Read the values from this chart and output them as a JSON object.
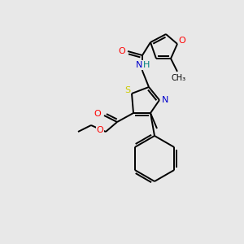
{
  "bg_color": "#e8e8e8",
  "atom_colors": {
    "C": "#000000",
    "N": "#0000cc",
    "O": "#ff0000",
    "S": "#cccc00",
    "H": "#008080"
  },
  "figsize": [
    3.0,
    3.0
  ],
  "dpi": 100
}
